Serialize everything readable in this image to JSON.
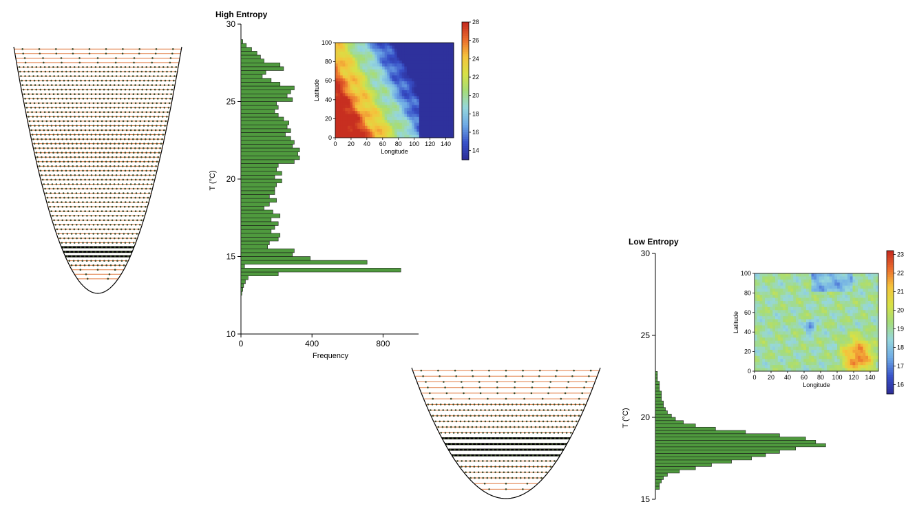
{
  "colors": {
    "bar_fill": "#4f9a3e",
    "bar_stroke": "#1a1a1a",
    "level_line": "#e07a40",
    "bowl": "#000000",
    "dot": "#3b4a2a"
  },
  "chart_data": [
    {
      "type": "bar",
      "orientation": "horizontal",
      "title": "High Entropy",
      "xlabel": "Frequency",
      "ylabel": "T (°C)",
      "xlim": [
        0,
        1000
      ],
      "ylim": [
        10,
        30
      ],
      "xticks": [
        "0",
        "400",
        "800"
      ],
      "yticks": [
        "10",
        "15",
        "20",
        "25",
        "30"
      ],
      "bin_width": 0.25,
      "bins": [
        [
          12.5,
          5
        ],
        [
          12.75,
          10
        ],
        [
          13.0,
          15
        ],
        [
          13.25,
          25
        ],
        [
          13.5,
          40
        ],
        [
          13.75,
          210
        ],
        [
          14.0,
          900
        ],
        [
          14.25,
          20
        ],
        [
          14.5,
          710
        ],
        [
          14.75,
          390
        ],
        [
          15.0,
          290
        ],
        [
          15.25,
          300
        ],
        [
          15.5,
          150
        ],
        [
          15.75,
          160
        ],
        [
          16.0,
          210
        ],
        [
          16.25,
          220
        ],
        [
          16.5,
          170
        ],
        [
          16.75,
          190
        ],
        [
          17.0,
          210
        ],
        [
          17.25,
          170
        ],
        [
          17.5,
          220
        ],
        [
          17.75,
          180
        ],
        [
          18.0,
          130
        ],
        [
          18.25,
          160
        ],
        [
          18.5,
          200
        ],
        [
          18.75,
          160
        ],
        [
          19.0,
          190
        ],
        [
          19.25,
          190
        ],
        [
          19.5,
          200
        ],
        [
          19.75,
          230
        ],
        [
          20.0,
          190
        ],
        [
          20.25,
          230
        ],
        [
          20.5,
          200
        ],
        [
          20.75,
          210
        ],
        [
          21.0,
          300
        ],
        [
          21.25,
          330
        ],
        [
          21.5,
          320
        ],
        [
          21.75,
          330
        ],
        [
          22.0,
          290
        ],
        [
          22.25,
          300
        ],
        [
          22.5,
          280
        ],
        [
          22.75,
          250
        ],
        [
          23.0,
          280
        ],
        [
          23.25,
          260
        ],
        [
          23.5,
          270
        ],
        [
          23.75,
          240
        ],
        [
          24.0,
          210
        ],
        [
          24.25,
          190
        ],
        [
          24.5,
          210
        ],
        [
          24.75,
          200
        ],
        [
          25.0,
          290
        ],
        [
          25.25,
          260
        ],
        [
          25.5,
          280
        ],
        [
          25.75,
          300
        ],
        [
          26.0,
          220
        ],
        [
          26.25,
          170
        ],
        [
          26.5,
          120
        ],
        [
          26.75,
          140
        ],
        [
          27.0,
          240
        ],
        [
          27.25,
          220
        ],
        [
          27.5,
          130
        ],
        [
          27.75,
          110
        ],
        [
          28.0,
          90
        ],
        [
          28.25,
          60
        ],
        [
          28.5,
          30
        ],
        [
          28.75,
          10
        ]
      ]
    },
    {
      "type": "heatmap",
      "inset_of": "High Entropy",
      "xlabel": "Longitude",
      "ylabel": "Latitude",
      "xticks": [
        "0",
        "20",
        "40",
        "60",
        "80",
        "100",
        "120",
        "140"
      ],
      "yticks": [
        "0",
        "20",
        "40",
        "60",
        "80",
        "100"
      ],
      "xlim": [
        0,
        150
      ],
      "ylim": [
        0,
        100
      ],
      "colorbar_range": [
        13,
        28
      ],
      "colorbar_ticks": [
        "14",
        "16",
        "18",
        "20",
        "22",
        "24",
        "26",
        "28"
      ],
      "pattern": "warm (~27) in lower-left, cool (~14) on right, boundary running diagonally"
    },
    {
      "type": "bar",
      "orientation": "horizontal",
      "title": "Low Entropy",
      "ylabel": "T (°C)",
      "xlim": [
        0,
        100
      ],
      "ylim": [
        15,
        30
      ],
      "yticks": [
        "15",
        "20",
        "25",
        "30"
      ],
      "bin_width": 0.2,
      "bins": [
        [
          15.6,
          2
        ],
        [
          15.8,
          2
        ],
        [
          16.0,
          3
        ],
        [
          16.2,
          4
        ],
        [
          16.4,
          6
        ],
        [
          16.6,
          12
        ],
        [
          16.8,
          20
        ],
        [
          17.0,
          28
        ],
        [
          17.2,
          38
        ],
        [
          17.4,
          48
        ],
        [
          17.6,
          55
        ],
        [
          17.8,
          62
        ],
        [
          18.0,
          70
        ],
        [
          18.2,
          85
        ],
        [
          18.4,
          80
        ],
        [
          18.6,
          75
        ],
        [
          18.8,
          62
        ],
        [
          19.0,
          45
        ],
        [
          19.2,
          30
        ],
        [
          19.4,
          20
        ],
        [
          19.6,
          14
        ],
        [
          19.8,
          10
        ],
        [
          20.0,
          8
        ],
        [
          20.2,
          6
        ],
        [
          20.4,
          5
        ],
        [
          20.6,
          4
        ],
        [
          20.8,
          4
        ],
        [
          21.0,
          3
        ],
        [
          21.2,
          3
        ],
        [
          21.4,
          3
        ],
        [
          21.6,
          2
        ],
        [
          21.8,
          2
        ],
        [
          22.0,
          2
        ],
        [
          22.2,
          1
        ],
        [
          22.4,
          1
        ],
        [
          22.6,
          1
        ]
      ]
    },
    {
      "type": "heatmap",
      "inset_of": "Low Entropy",
      "xlabel": "Longitude",
      "ylabel": "Latitude",
      "xticks": [
        "0",
        "20",
        "40",
        "60",
        "80",
        "100",
        "120",
        "140"
      ],
      "yticks": [
        "0",
        "20",
        "40",
        "60",
        "80",
        "100"
      ],
      "xlim": [
        0,
        150
      ],
      "ylim": [
        0,
        100
      ],
      "colorbar_range": [
        15.5,
        23.2
      ],
      "colorbar_ticks": [
        "16",
        "17",
        "18",
        "19",
        "20",
        "21",
        "22",
        "23"
      ],
      "pattern": "mostly ~18.5-19, dark blue patch near centre (~16), warm red patch lower-right (~22.5)"
    }
  ]
}
